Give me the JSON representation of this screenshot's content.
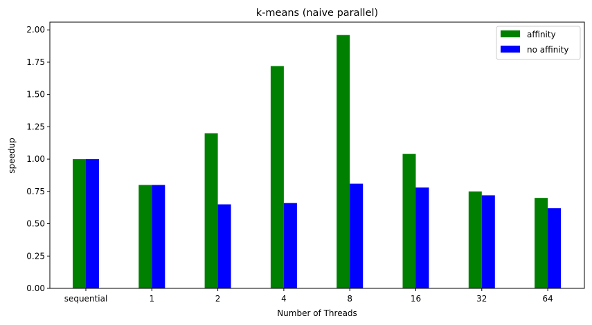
{
  "chart_data": {
    "type": "bar",
    "title": "k-means (naive parallel)",
    "xlabel": "Number of Threads",
    "ylabel": "speedup",
    "categories": [
      "sequential",
      "1",
      "2",
      "4",
      "8",
      "16",
      "32",
      "64"
    ],
    "series": [
      {
        "name": "affinity",
        "color": "#008000",
        "values": [
          1.0,
          0.8,
          1.2,
          1.72,
          1.96,
          1.04,
          0.75,
          0.7
        ]
      },
      {
        "name": "no affinity",
        "color": "#0000ff",
        "values": [
          1.0,
          0.8,
          0.65,
          0.66,
          0.81,
          0.78,
          0.72,
          0.62
        ]
      }
    ],
    "ylim": [
      0,
      2.06
    ],
    "yticks": [
      "0.00",
      "0.25",
      "0.50",
      "0.75",
      "1.00",
      "1.25",
      "1.50",
      "1.75",
      "2.00"
    ],
    "legend_position": "top-right",
    "grid": false
  }
}
